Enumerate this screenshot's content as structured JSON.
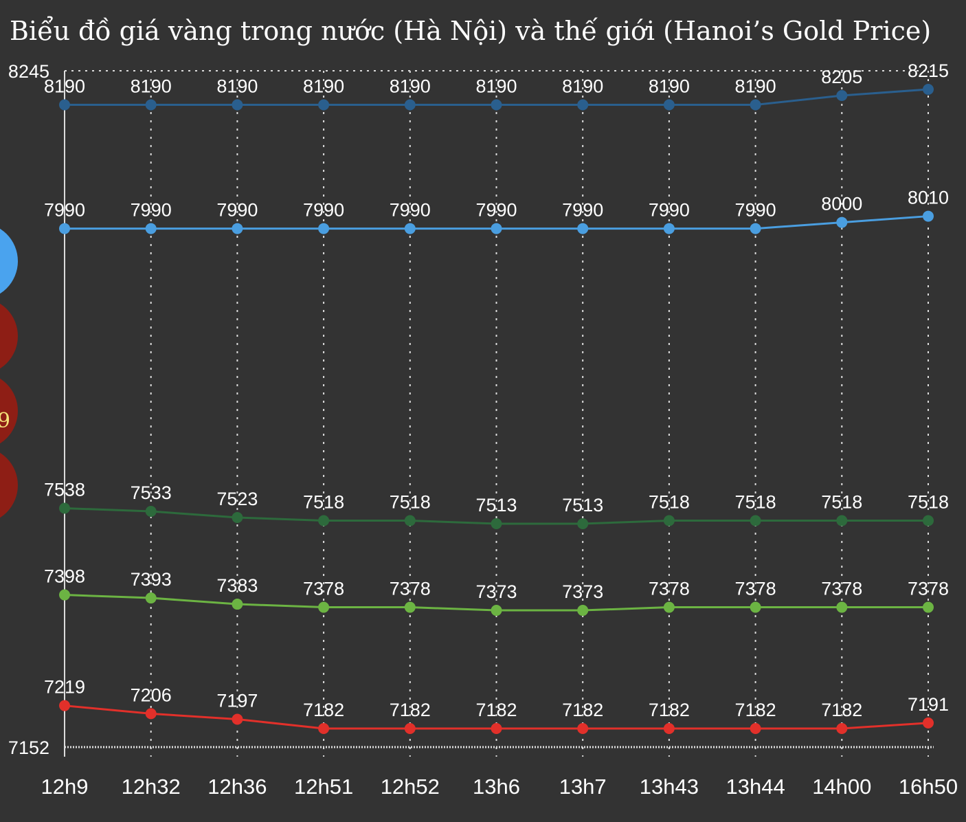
{
  "chart_data": {
    "type": "line",
    "title": "Biểu đồ giá vàng trong nước (Hà Nội) và thế giới (Hanoi’s Gold Price)",
    "categories": [
      "12h9",
      "12h32",
      "12h36",
      "12h51",
      "12h52",
      "13h6",
      "13h7",
      "13h43",
      "13h44",
      "14h00",
      "16h50"
    ],
    "series": [
      {
        "color": "#2a5f8e",
        "values": [
          8190,
          8190,
          8190,
          8190,
          8190,
          8190,
          8190,
          8190,
          8190,
          8205,
          8215
        ]
      },
      {
        "color": "#4a9ee0",
        "values": [
          7990,
          7990,
          7990,
          7990,
          7990,
          7990,
          7990,
          7990,
          7990,
          8000,
          8010
        ]
      },
      {
        "color": "#2d6a3c",
        "values": [
          7538,
          7533,
          7523,
          7518,
          7518,
          7513,
          7513,
          7518,
          7518,
          7518,
          7518
        ]
      },
      {
        "color": "#6cb443",
        "values": [
          7398,
          7393,
          7383,
          7378,
          7378,
          7373,
          7373,
          7378,
          7378,
          7378,
          7378
        ]
      },
      {
        "color": "#e2302a",
        "values": [
          7219,
          7206,
          7197,
          7182,
          7182,
          7182,
          7182,
          7182,
          7182,
          7182,
          7191
        ]
      }
    ],
    "ylim": [
      7152,
      8245
    ],
    "yticks": [
      7152,
      8245
    ],
    "grid": true
  },
  "overlay_text": "9"
}
